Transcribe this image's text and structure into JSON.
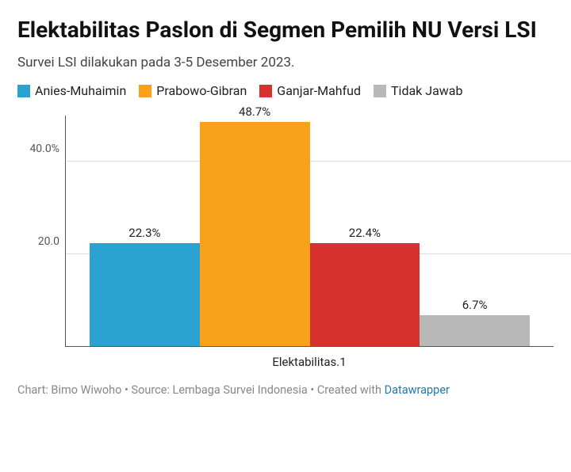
{
  "title": "Elektabilitas Paslon di Segmen Pemilih NU Versi LSI",
  "subtitle": "Survei LSI dilakukan pada 3-5 Desember 2023.",
  "chart": {
    "type": "bar",
    "categories": [
      "Anies-Muhaimin",
      "Prabowo-Gibran",
      "Ganjar-Mahfud",
      "Tidak Jawab"
    ],
    "values": [
      22.3,
      48.7,
      22.4,
      6.7
    ],
    "value_labels": [
      "22.3%",
      "48.7%",
      "22.4%",
      "6.7%"
    ],
    "bar_colors": [
      "#2aa3d3",
      "#f9a11b",
      "#d7312e",
      "#b8b8b8"
    ],
    "ylim": [
      0,
      50
    ],
    "yticks": [
      20.0,
      40.0
    ],
    "ytick_labels": [
      "20.0",
      "40.0%"
    ],
    "xaxis_label": "Elektabilitas.1",
    "background_color": "#ffffff",
    "grid_color": "#dddddd",
    "axis_color": "#555555",
    "label_fontsize": 15,
    "bar_width": 1.0
  },
  "legend": {
    "items": [
      {
        "label": "Anies-Muhaimin",
        "color": "#2aa3d3"
      },
      {
        "label": "Prabowo-Gibran",
        "color": "#f9a11b"
      },
      {
        "label": "Ganjar-Mahfud",
        "color": "#d7312e"
      },
      {
        "label": "Tidak Jawab",
        "color": "#b8b8b8"
      }
    ]
  },
  "footer": {
    "prefix": "Chart: Bimo Wiwoho • Source: Lembaga Survei Indonesia • Created with ",
    "link_text": "Datawrapper"
  }
}
